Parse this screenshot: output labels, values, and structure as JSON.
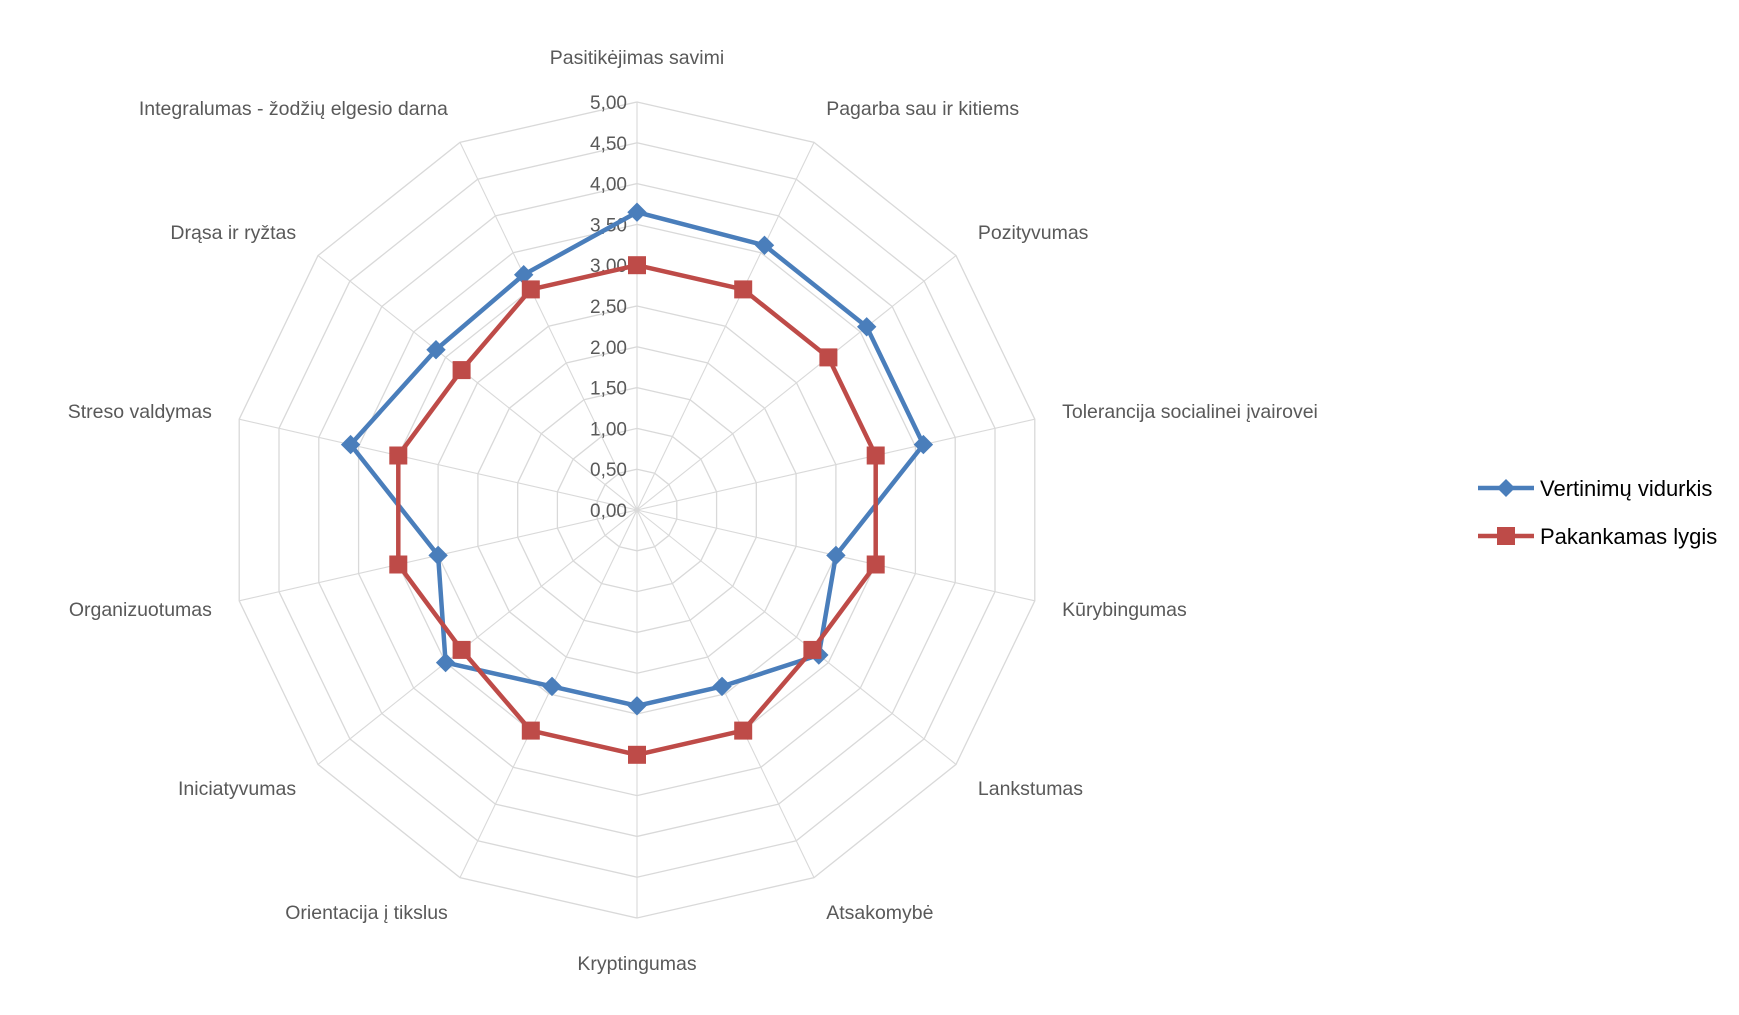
{
  "chart_data": {
    "type": "radar",
    "categories": [
      "Pasitikėjimas savimi",
      "Pagarba sau ir kitiems",
      "Pozityvumas",
      "Tolerancija socialinei įvairovei",
      "Kūrybingumas",
      "Lankstumas",
      "Atsakomybė",
      "Kryptingumas",
      "Orientacija į tikslus",
      "Iniciatyvumas",
      "Organizuotumas",
      "Streso valdymas",
      "Drąsa ir ryžtas",
      "Integralumas - žodžių elgesio darna"
    ],
    "rlim": [
      0,
      5
    ],
    "ticks": [
      "0,00",
      "0,50",
      "1,00",
      "1,50",
      "2,00",
      "2,50",
      "3,00",
      "3,50",
      "4,00",
      "4,50",
      "5,00"
    ],
    "grid": true,
    "legend_position": "right",
    "series": [
      {
        "name": "Vertinimų vidurkis",
        "color": "#4a7ebb",
        "marker": "diamond",
        "values": [
          3.65,
          3.6,
          3.6,
          3.6,
          2.5,
          2.85,
          2.4,
          2.4,
          2.4,
          3.0,
          2.5,
          3.6,
          3.15,
          3.2
        ]
      },
      {
        "name": "Pakankamas lygis",
        "color": "#be4b48",
        "marker": "square",
        "values": [
          3.0,
          3.0,
          3.0,
          3.0,
          3.0,
          2.75,
          3.0,
          3.0,
          3.0,
          2.75,
          3.0,
          3.0,
          2.75,
          3.0
        ]
      }
    ]
  }
}
